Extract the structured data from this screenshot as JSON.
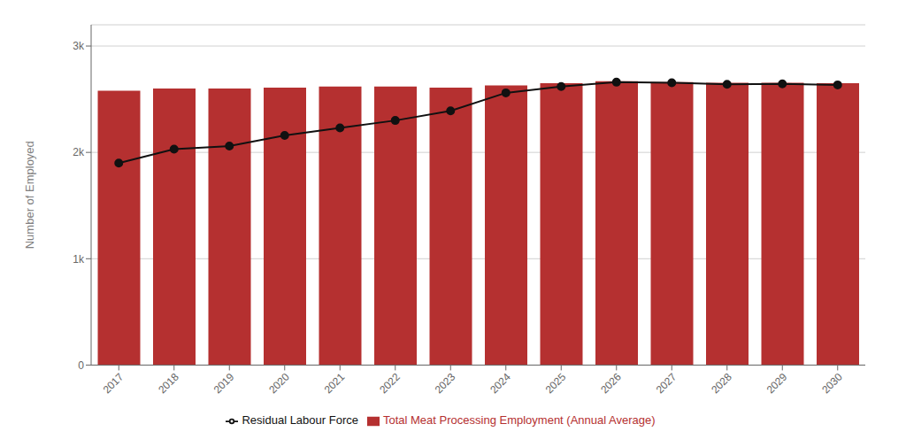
{
  "chart_data": {
    "type": "bar",
    "categories": [
      "2017",
      "2018",
      "2019",
      "2020",
      "2021",
      "2022",
      "2023",
      "2024",
      "2025",
      "2026",
      "2027",
      "2028",
      "2029",
      "2030"
    ],
    "series": [
      {
        "name": "Total Meat Processing Employment (Annual Average)",
        "type": "bar",
        "color": "#b53030",
        "values": [
          2580,
          2600,
          2600,
          2610,
          2620,
          2620,
          2610,
          2630,
          2650,
          2670,
          2660,
          2655,
          2655,
          2650
        ]
      },
      {
        "name": "Residual Labour Force",
        "type": "line",
        "color": "#111111",
        "marker": "circle",
        "values": [
          1900,
          2030,
          2060,
          2160,
          2230,
          2300,
          2390,
          2560,
          2620,
          2660,
          2655,
          2640,
          2645,
          2635
        ]
      }
    ],
    "ylabel": "Number of Employed",
    "ylim": [
      0,
      3200
    ],
    "yticks": [
      0,
      {
        "value": 1000,
        "label": "1k"
      },
      {
        "value": 2000,
        "label": "2k"
      },
      {
        "value": 3000,
        "label": "3k"
      }
    ],
    "grid": true,
    "legend": "bottom"
  }
}
